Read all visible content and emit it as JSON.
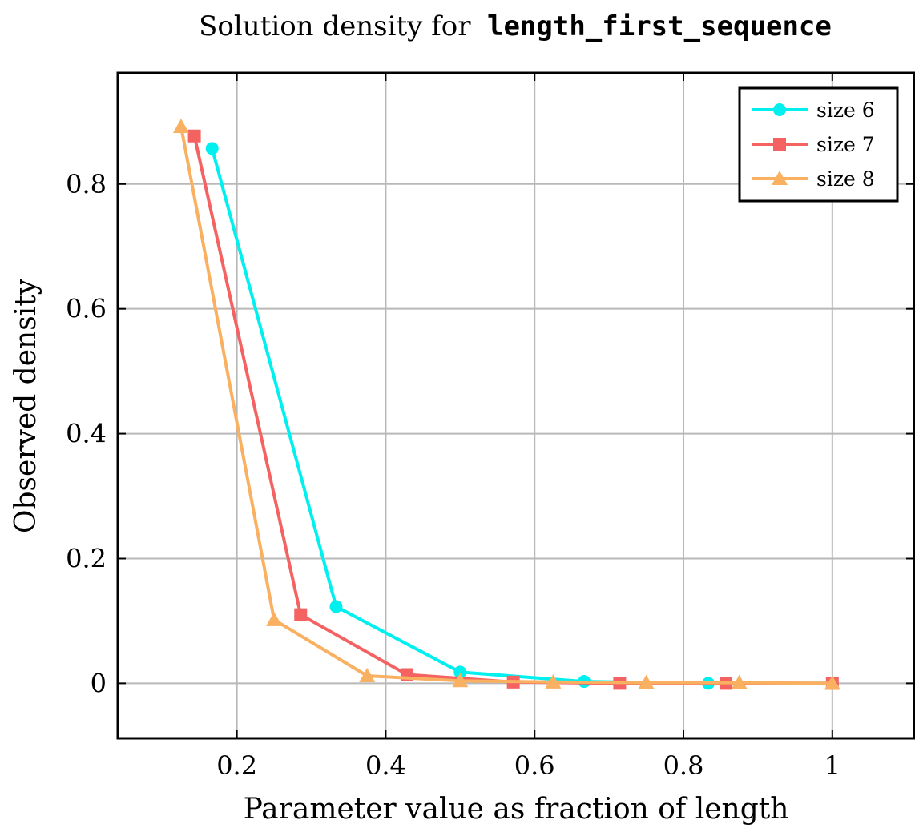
{
  "chart_data": {
    "type": "line",
    "title": {
      "prefix": "Solution density for",
      "code": "length_first_sequence"
    },
    "xlabel": "Parameter value as fraction of length",
    "ylabel": "Observed density",
    "xlim": [
      0.04,
      1.11
    ],
    "ylim": [
      -0.088,
      0.978
    ],
    "xticks": [
      {
        "value": 0.2,
        "label": "0.2"
      },
      {
        "value": 0.4,
        "label": "0.4"
      },
      {
        "value": 0.6,
        "label": "0.6"
      },
      {
        "value": 0.8,
        "label": "0.8"
      },
      {
        "value": 1.0,
        "label": "1"
      }
    ],
    "yticks": [
      {
        "value": 0.0,
        "label": "0"
      },
      {
        "value": 0.2,
        "label": "0.2"
      },
      {
        "value": 0.4,
        "label": "0.4"
      },
      {
        "value": 0.6,
        "label": "0.6"
      },
      {
        "value": 0.8,
        "label": "0.8"
      }
    ],
    "grid": true,
    "legend_position": "top-right",
    "series": [
      {
        "name": "size 6",
        "color": "#00f0f0",
        "marker": "circle",
        "x": [
          0.1667,
          0.3333,
          0.5,
          0.6667,
          0.8333,
          1.0
        ],
        "y": [
          0.857,
          0.123,
          0.018,
          0.003,
          0.0,
          0.0
        ]
      },
      {
        "name": "size 7",
        "color": "#f46262",
        "marker": "square",
        "x": [
          0.1429,
          0.2857,
          0.4286,
          0.5714,
          0.7143,
          0.8571,
          1.0
        ],
        "y": [
          0.877,
          0.11,
          0.014,
          0.002,
          0.0,
          0.0,
          0.0
        ]
      },
      {
        "name": "size 8",
        "color": "#f9b060",
        "marker": "triangle",
        "x": [
          0.125,
          0.25,
          0.375,
          0.5,
          0.625,
          0.75,
          0.875,
          1.0
        ],
        "y": [
          0.892,
          0.102,
          0.012,
          0.004,
          0.002,
          0.001,
          0.001,
          0.0
        ]
      }
    ]
  }
}
